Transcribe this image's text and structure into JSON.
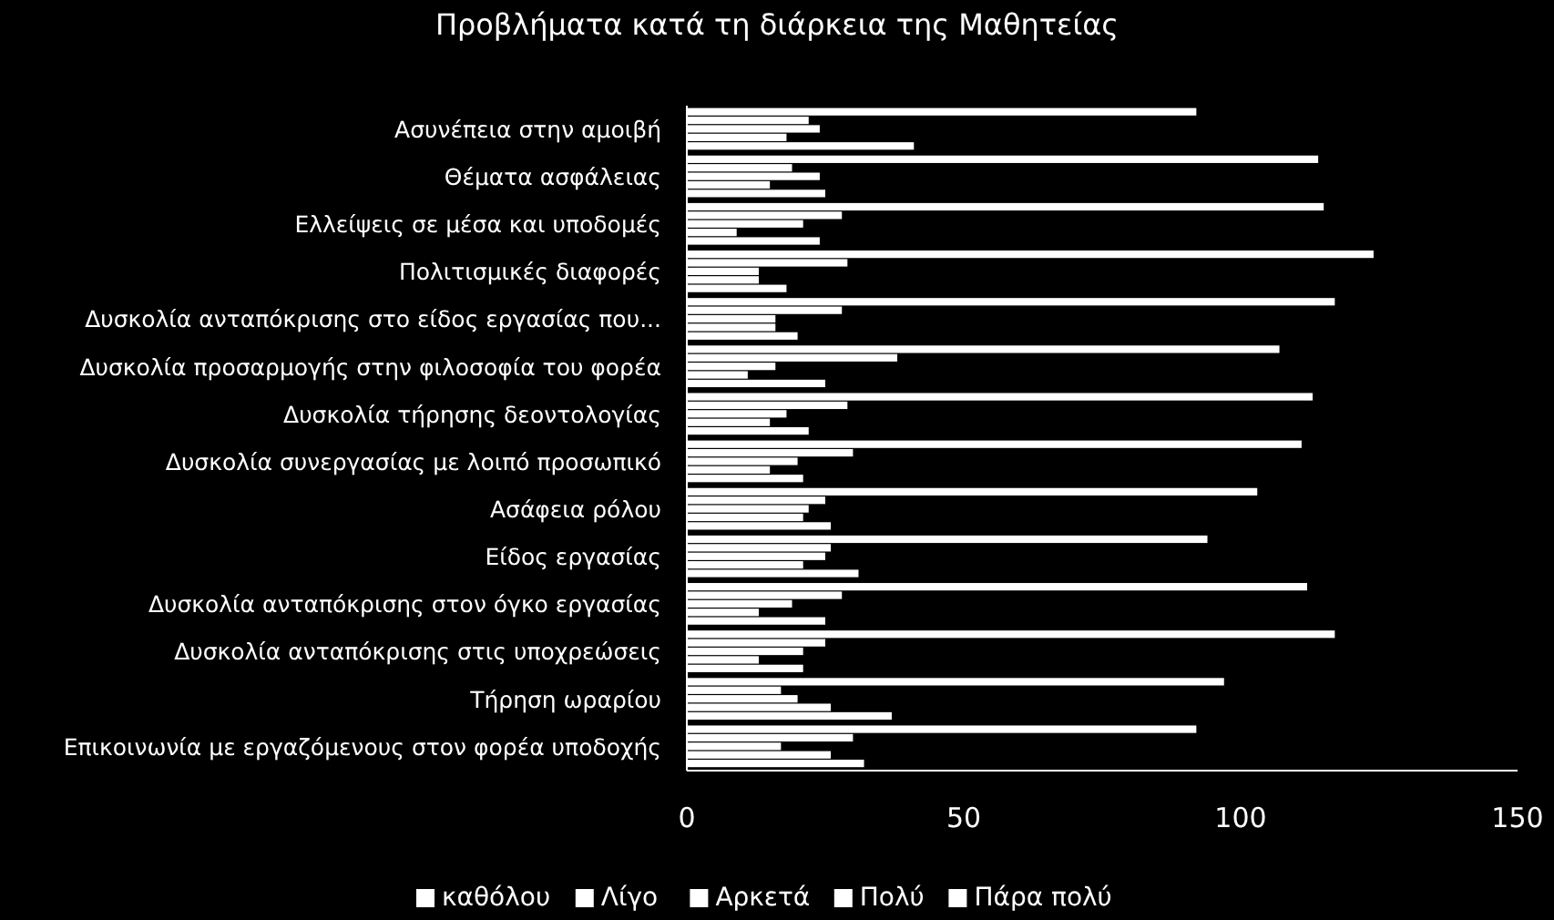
{
  "chart_data": {
    "type": "bar",
    "orientation": "horizontal",
    "title": "Προβλήματα κατά τη διάρκεια της Μαθητείας",
    "categories": [
      "Ασυνέπεια στην αμοιβή",
      "Θέματα ασφάλειας",
      "Ελλείψεις σε μέσα και υποδομές",
      "Πολιτισμικές διαφορές",
      "Δυσκολία ανταπόκρισης στο είδος εργασίας που...",
      "Δυσκολία προσαρμογής στην φιλοσοφία του φορέα",
      "Δυσκολία τήρησης δεοντολογίας",
      "Δυσκολία συνεργασίας με λοιπό προσωπικό",
      "Ασάφεια ρόλου",
      "Είδος εργασίας",
      "Δυσκολία ανταπόκρισης στον όγκο εργασίας",
      "Δυσκολία  ανταπόκρισης στις υποχρεώσεις",
      "Τήρηση ωραρίου",
      "Επικοινωνία με εργαζόμενους στον φορέα υποδοχής"
    ],
    "series": [
      {
        "name": "καθόλου",
        "color": "#ffffff",
        "values": [
          92,
          114,
          115,
          124,
          117,
          107,
          113,
          111,
          103,
          94,
          112,
          117,
          97,
          92
        ]
      },
      {
        "name": "Λίγο",
        "color": "#ffffff",
        "values": [
          22,
          19,
          28,
          29,
          28,
          38,
          29,
          30,
          25,
          26,
          28,
          25,
          17,
          30
        ]
      },
      {
        "name": "Αρκετά",
        "color": "#ffffff",
        "values": [
          24,
          24,
          21,
          13,
          16,
          16,
          18,
          20,
          22,
          25,
          19,
          21,
          20,
          17
        ]
      },
      {
        "name": "Πολύ",
        "color": "#ffffff",
        "values": [
          18,
          15,
          9,
          13,
          16,
          11,
          15,
          15,
          21,
          21,
          13,
          13,
          26,
          26
        ]
      },
      {
        "name": "Πάρα πολύ",
        "color": "#ffffff",
        "values": [
          41,
          25,
          24,
          18,
          20,
          25,
          22,
          21,
          26,
          31,
          25,
          21,
          37,
          32
        ]
      }
    ],
    "xlim": [
      0,
      150
    ],
    "xticks": [
      0,
      50,
      100,
      150
    ],
    "grid": false,
    "legend": "bottom"
  }
}
